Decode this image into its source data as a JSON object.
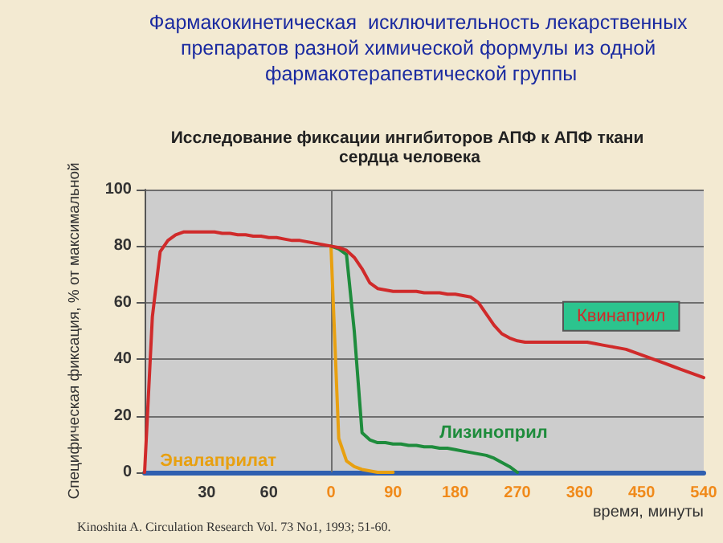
{
  "chart_data": {
    "type": "line",
    "title": "Фармакокинетическая  исключительность лекарственных препаратов разной химической формулы из одной фармакотерапевтической группы",
    "subtitle": "Исследование фиксации ингибиторов АПФ к АПФ ткани сердца человека",
    "ylabel": "Специфическая фиксация, % от максимальной",
    "xlabel": "время, минуты",
    "annotations": [
      "Kinoshita A. Circulation Research Vol. 73 No1, 1993; 51-60."
    ],
    "categories": [
      null,
      null,
      null,
      null,
      null,
      null,
      null,
      null,
      "30",
      null,
      null,
      null,
      null,
      null,
      null,
      null,
      "60",
      null,
      null,
      null,
      null,
      null,
      null,
      null,
      "0",
      null,
      null,
      null,
      null,
      null,
      null,
      null,
      "90",
      null,
      null,
      null,
      null,
      null,
      null,
      null,
      "180",
      null,
      null,
      null,
      null,
      null,
      null,
      null,
      "270",
      null,
      null,
      null,
      null,
      null,
      null,
      null,
      "360",
      null,
      null,
      null,
      null,
      null,
      null,
      null,
      "450",
      null,
      null,
      null,
      null,
      null,
      null,
      null,
      "540"
    ],
    "series": [
      {
        "name": "Квинаприл",
        "color": "#d02a2a",
        "values": [
          0,
          55,
          78,
          82,
          84,
          85,
          85,
          85,
          85,
          85,
          84.5,
          84.5,
          84,
          84,
          83.5,
          83.5,
          83,
          83,
          82.5,
          82,
          82,
          81.5,
          81,
          80.5,
          80,
          79.5,
          78.5,
          76,
          72,
          67,
          65,
          64.5,
          64,
          64,
          64,
          64,
          63.5,
          63.5,
          63.5,
          63,
          63,
          62.5,
          62,
          60,
          56,
          52,
          49,
          47.5,
          46.5,
          46,
          46,
          46,
          46,
          46,
          46,
          46,
          46,
          46,
          45.5,
          45,
          44.5,
          44,
          43.5,
          42.5,
          41.5,
          40.5,
          39.5,
          38.5,
          37.5,
          36.5,
          35.5,
          34.5,
          33.5
        ]
      },
      {
        "name": "Лизиноприл",
        "color": "#1e8c3c",
        "values": [
          null,
          null,
          null,
          null,
          null,
          null,
          null,
          null,
          null,
          null,
          null,
          null,
          null,
          null,
          null,
          null,
          null,
          null,
          null,
          null,
          null,
          null,
          null,
          null,
          80,
          79,
          77,
          50,
          14,
          11.5,
          10.5,
          10.5,
          10,
          10,
          9.5,
          9.5,
          9,
          9,
          8.5,
          8.5,
          8,
          7.5,
          7,
          6.5,
          6,
          5,
          3.5,
          2,
          0,
          null,
          null,
          null,
          null,
          null,
          null,
          null,
          null,
          null,
          null,
          null,
          null,
          null,
          null,
          null,
          null,
          null,
          null,
          null,
          null,
          null,
          null,
          null,
          null
        ]
      },
      {
        "name": "Эналаприлат",
        "color": "#e8a010",
        "values": [
          null,
          null,
          null,
          null,
          null,
          null,
          null,
          null,
          null,
          null,
          null,
          null,
          null,
          null,
          null,
          null,
          null,
          null,
          null,
          null,
          null,
          null,
          null,
          null,
          80,
          12,
          4,
          2,
          1,
          0.5,
          0,
          0,
          0,
          null,
          null,
          null,
          null,
          null,
          null,
          null,
          null,
          null,
          null,
          null,
          null,
          null,
          null,
          null,
          null,
          null,
          null,
          null,
          null,
          null,
          null,
          null,
          null,
          null,
          null,
          null,
          null,
          null,
          null,
          null,
          null,
          null,
          null,
          null,
          null,
          null,
          null,
          null,
          null
        ]
      }
    ],
    "ylim": [
      0,
      100
    ],
    "yticks": [
      0,
      20,
      40,
      60,
      80,
      100
    ],
    "grid": "y",
    "legend": false,
    "marker": "none",
    "line_style": "solid",
    "ref_lines": [
      {
        "axis": "x",
        "value": "0",
        "color": "#707070"
      }
    ]
  }
}
